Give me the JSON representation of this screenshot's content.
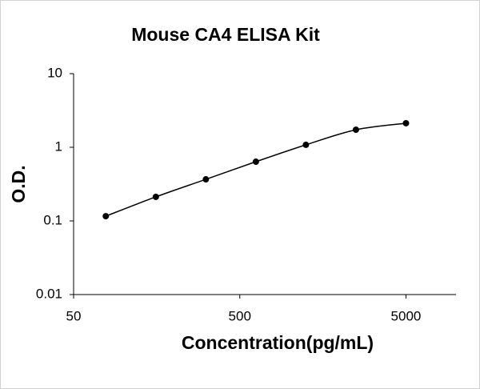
{
  "chart_data": {
    "type": "scatter",
    "title": "Mouse CA4 ELISA Kit",
    "xlabel": "Concentration(pg/mL)",
    "ylabel": "O.D.",
    "x": [
      78.125,
      156.25,
      312.5,
      625,
      1250,
      2500,
      5000
    ],
    "values": [
      0.116,
      0.212,
      0.367,
      0.637,
      1.08,
      1.73,
      2.12
    ],
    "color": "#000000",
    "xscale": "log",
    "yscale": "log",
    "xlim": [
      50,
      10000
    ],
    "ylim": [
      0.01,
      10
    ],
    "xticks": [
      50,
      500,
      5000
    ],
    "yticks": [
      0.01,
      0.1,
      1,
      10
    ],
    "grid": false
  }
}
